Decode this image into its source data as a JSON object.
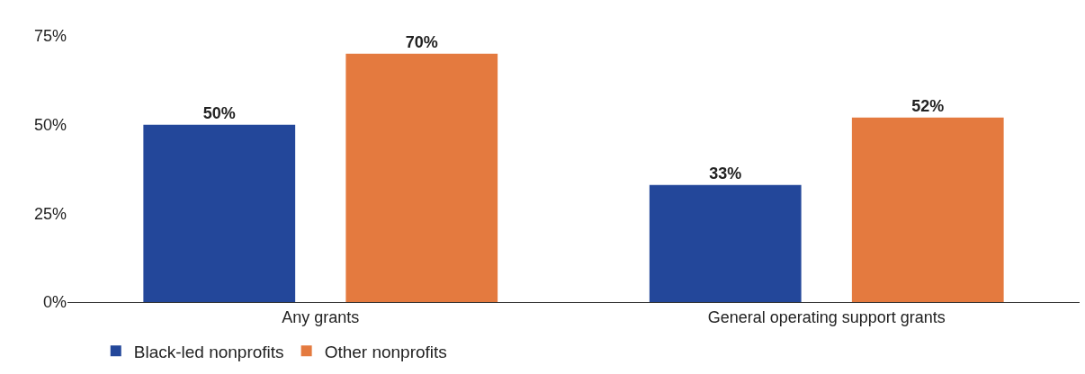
{
  "chart_data": {
    "type": "bar",
    "categories": [
      "Any grants",
      "General operating support grants"
    ],
    "series": [
      {
        "name": "Black-led nonprofits",
        "color": "#23479a",
        "values": [
          50,
          33
        ]
      },
      {
        "name": "Other nonprofits",
        "color": "#e47a3f",
        "values": [
          70,
          52
        ]
      }
    ],
    "ylim": [
      0,
      75
    ],
    "yticks": [
      {
        "value": 0,
        "label": "0%"
      },
      {
        "value": 25,
        "label": "25%"
      },
      {
        "value": 50,
        "label": "50%"
      },
      {
        "value": 75,
        "label": "75%"
      }
    ],
    "value_labels": [
      [
        "50%",
        "33%"
      ],
      [
        "70%",
        "52%"
      ]
    ],
    "legend": "bottom left"
  }
}
